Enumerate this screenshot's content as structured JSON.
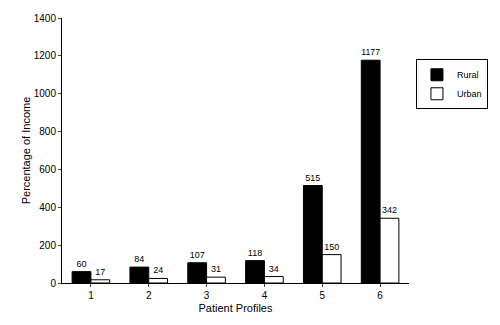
{
  "chart_data": {
    "type": "bar",
    "x_label": "Patient Profiles",
    "y_label": "Percentage of Income",
    "categories": [
      "1",
      "2",
      "3",
      "4",
      "5",
      "6"
    ],
    "series": [
      {
        "name": "Rural",
        "color": "#000000",
        "values": [
          60,
          84,
          107,
          118,
          515,
          1177
        ]
      },
      {
        "name": "Urban",
        "color": "#ffffff",
        "values": [
          17,
          24,
          31,
          34,
          150,
          342
        ]
      }
    ],
    "ylim": [
      0,
      1400
    ],
    "yticks": [
      0,
      200,
      400,
      600,
      800,
      1000,
      1200,
      1400
    ],
    "grid": false,
    "legend": "right",
    "data_labels": true
  }
}
